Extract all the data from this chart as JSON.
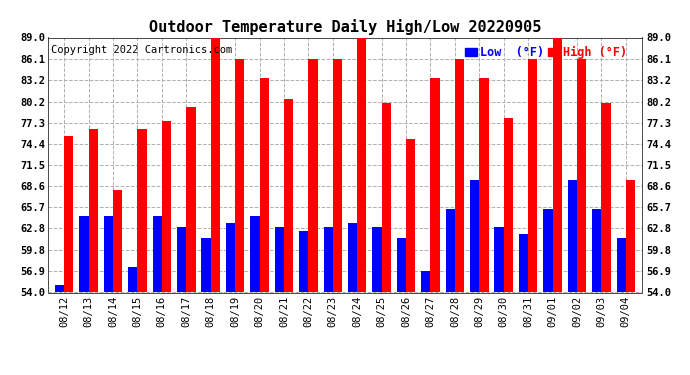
{
  "title": "Outdoor Temperature Daily High/Low 20220905",
  "copyright": "Copyright 2022 Cartronics.com",
  "legend_low_label": "Low  (°F)",
  "legend_high_label": "High (°F)",
  "dates": [
    "08/12",
    "08/13",
    "08/14",
    "08/15",
    "08/16",
    "08/17",
    "08/18",
    "08/19",
    "08/20",
    "08/21",
    "08/22",
    "08/23",
    "08/24",
    "08/25",
    "08/26",
    "08/27",
    "08/28",
    "08/29",
    "08/30",
    "08/31",
    "09/01",
    "09/02",
    "09/03",
    "09/04"
  ],
  "highs": [
    75.5,
    76.5,
    68.0,
    76.5,
    77.5,
    79.5,
    89.0,
    86.0,
    83.5,
    80.5,
    86.0,
    86.0,
    89.0,
    80.0,
    75.0,
    83.5,
    86.0,
    83.5,
    78.0,
    86.0,
    89.0,
    86.0,
    80.0,
    69.5
  ],
  "lows": [
    55.0,
    64.5,
    64.5,
    57.5,
    64.5,
    63.0,
    61.5,
    63.5,
    64.5,
    63.0,
    62.5,
    63.0,
    63.5,
    63.0,
    61.5,
    57.0,
    65.5,
    69.5,
    63.0,
    62.0,
    65.5,
    69.5,
    65.5,
    61.5
  ],
  "ylim_min": 54.0,
  "ylim_max": 89.0,
  "yticks": [
    54.0,
    56.9,
    59.8,
    62.8,
    65.7,
    68.6,
    71.5,
    74.4,
    77.3,
    80.2,
    83.2,
    86.1,
    89.0
  ],
  "bar_width": 0.38,
  "high_color": "#ff0000",
  "low_color": "#0000ff",
  "bg_color": "#ffffff",
  "grid_color": "#b0b0b0",
  "title_fontsize": 11,
  "copyright_fontsize": 7.5,
  "tick_fontsize": 7.5,
  "legend_fontsize": 8.5
}
